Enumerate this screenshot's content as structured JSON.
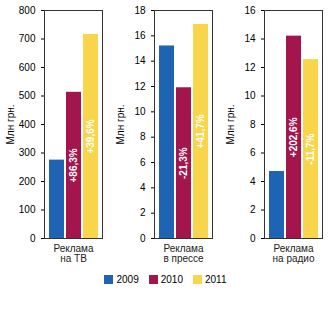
{
  "chart_data": [
    {
      "type": "bar",
      "categories": [
        "Реклама на ТВ"
      ],
      "ylabel": "Млн грн.",
      "series": [
        {
          "name": "2009",
          "color": "#1f63b3",
          "values": [
            275
          ]
        },
        {
          "name": "2010",
          "color": "#a3154d",
          "values": [
            513
          ]
        },
        {
          "name": "2011",
          "color": "#f8d54a",
          "values": [
            716
          ]
        }
      ],
      "annotations": [
        {
          "series": "2010",
          "text": "+86,3%"
        },
        {
          "series": "2011",
          "text": "+39,6%"
        }
      ],
      "ylim": [
        0,
        800
      ],
      "yticks": [
        0,
        100,
        200,
        300,
        400,
        500,
        600,
        700,
        800
      ],
      "legend": "bottom"
    },
    {
      "type": "bar",
      "categories": [
        "Реклама в прессе"
      ],
      "ylabel": "Млн грн.",
      "series": [
        {
          "name": "2009",
          "color": "#1f63b3",
          "values": [
            15.2
          ]
        },
        {
          "name": "2010",
          "color": "#a3154d",
          "values": [
            11.9
          ]
        },
        {
          "name": "2011",
          "color": "#f8d54a",
          "values": [
            16.9
          ]
        }
      ],
      "annotations": [
        {
          "series": "2010",
          "text": "-21,3%"
        },
        {
          "series": "2011",
          "text": "+41,7%"
        }
      ],
      "ylim": [
        0,
        18
      ],
      "yticks": [
        0,
        2,
        4,
        6,
        8,
        10,
        12,
        14,
        16,
        18
      ]
    },
    {
      "type": "bar",
      "categories": [
        "Реклама на радио"
      ],
      "ylabel": "Млн грн.",
      "series": [
        {
          "name": "2009",
          "color": "#1f63b3",
          "values": [
            4.7
          ]
        },
        {
          "name": "2010",
          "color": "#a3154d",
          "values": [
            14.2
          ]
        },
        {
          "name": "2011",
          "color": "#f8d54a",
          "values": [
            12.55
          ]
        }
      ],
      "annotations": [
        {
          "series": "2010",
          "text": "+202,6%"
        },
        {
          "series": "2011",
          "text": "-11,7%"
        }
      ],
      "ylim": [
        0,
        16
      ],
      "yticks": [
        0,
        2,
        4,
        6,
        8,
        10,
        12,
        14,
        16
      ]
    }
  ]
}
